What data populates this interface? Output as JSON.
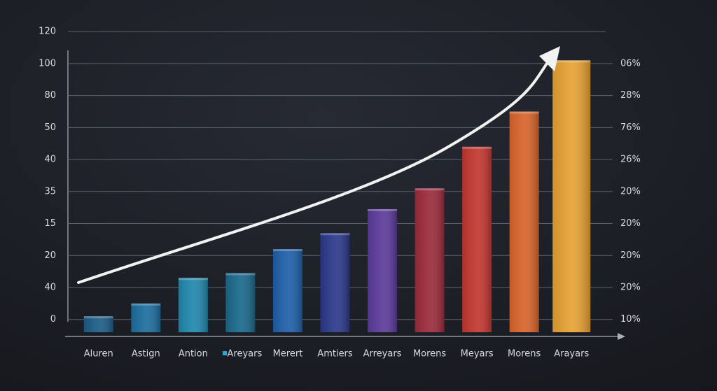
{
  "chart_data": {
    "type": "bar",
    "categories": [
      "Aluren",
      "Astign",
      "Antion",
      "Areyars",
      "Merert",
      "Amtiers",
      "Arreyars",
      "Morens",
      "Meyars",
      "Morens",
      "Arayars"
    ],
    "values": [
      0.1,
      0.5,
      1.3,
      1.45,
      2.2,
      2.7,
      3.45,
      4.1,
      5.4,
      6.5,
      8.1
    ],
    "colors": [
      "#1b5d86",
      "#1c6d9e",
      "#1f88ad",
      "#19698a",
      "#1f5fa9",
      "#2b388a",
      "#5b3a9b",
      "#9b2b3c",
      "#c2362f",
      "#d8642b",
      "#e8a233"
    ],
    "ylim": [
      -0.4,
      9.2
    ],
    "yticks": [
      {
        "value": 0,
        "label": "0"
      },
      {
        "value": 1,
        "label": "40"
      },
      {
        "value": 2,
        "label": "20"
      },
      {
        "value": 3,
        "label": "15"
      },
      {
        "value": 4,
        "label": "35"
      },
      {
        "value": 5,
        "label": "40"
      },
      {
        "value": 6,
        "label": "50"
      },
      {
        "value": 7,
        "label": "80"
      },
      {
        "value": 8,
        "label": "100"
      },
      {
        "value": 9,
        "label": "120"
      }
    ],
    "y2lim": [
      -0.4,
      9.2
    ],
    "y2ticks": [
      {
        "value": 0,
        "label": "10%"
      },
      {
        "value": 1,
        "label": "20%"
      },
      {
        "value": 2,
        "label": "20%"
      },
      {
        "value": 3,
        "label": "20%"
      },
      {
        "value": 4,
        "label": "20%"
      },
      {
        "value": 5,
        "label": "26%"
      },
      {
        "value": 6,
        "label": "76%"
      },
      {
        "value": 7,
        "label": "28%"
      },
      {
        "value": 8,
        "label": "06%"
      }
    ],
    "grid": true
  }
}
